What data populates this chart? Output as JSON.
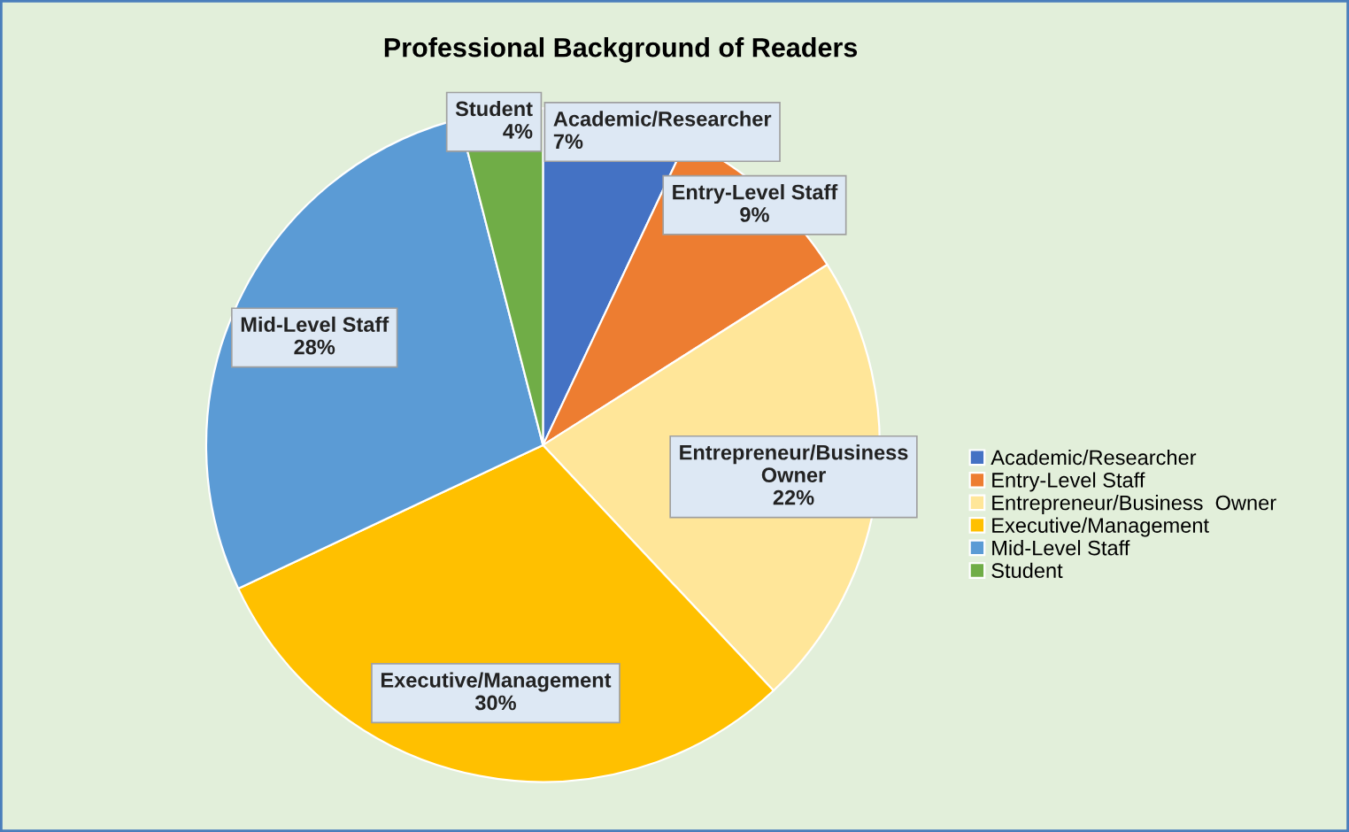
{
  "chart_data": {
    "type": "pie",
    "title": "Professional Background of Readers",
    "categories": [
      "Academic/Researcher",
      "Entry-Level Staff",
      "Entrepreneur/Business  Owner",
      "Executive/Management",
      "Mid-Level Staff",
      "Student"
    ],
    "values": [
      7,
      9,
      22,
      30,
      28,
      4
    ],
    "value_labels": [
      "7%",
      "9%",
      "22%",
      "30%",
      "28%",
      "4%"
    ],
    "colors": [
      "#4472c4",
      "#ed7d31",
      "#ffe699",
      "#ffc000",
      "#5b9bd5",
      "#70ad47"
    ],
    "legend": "right"
  }
}
